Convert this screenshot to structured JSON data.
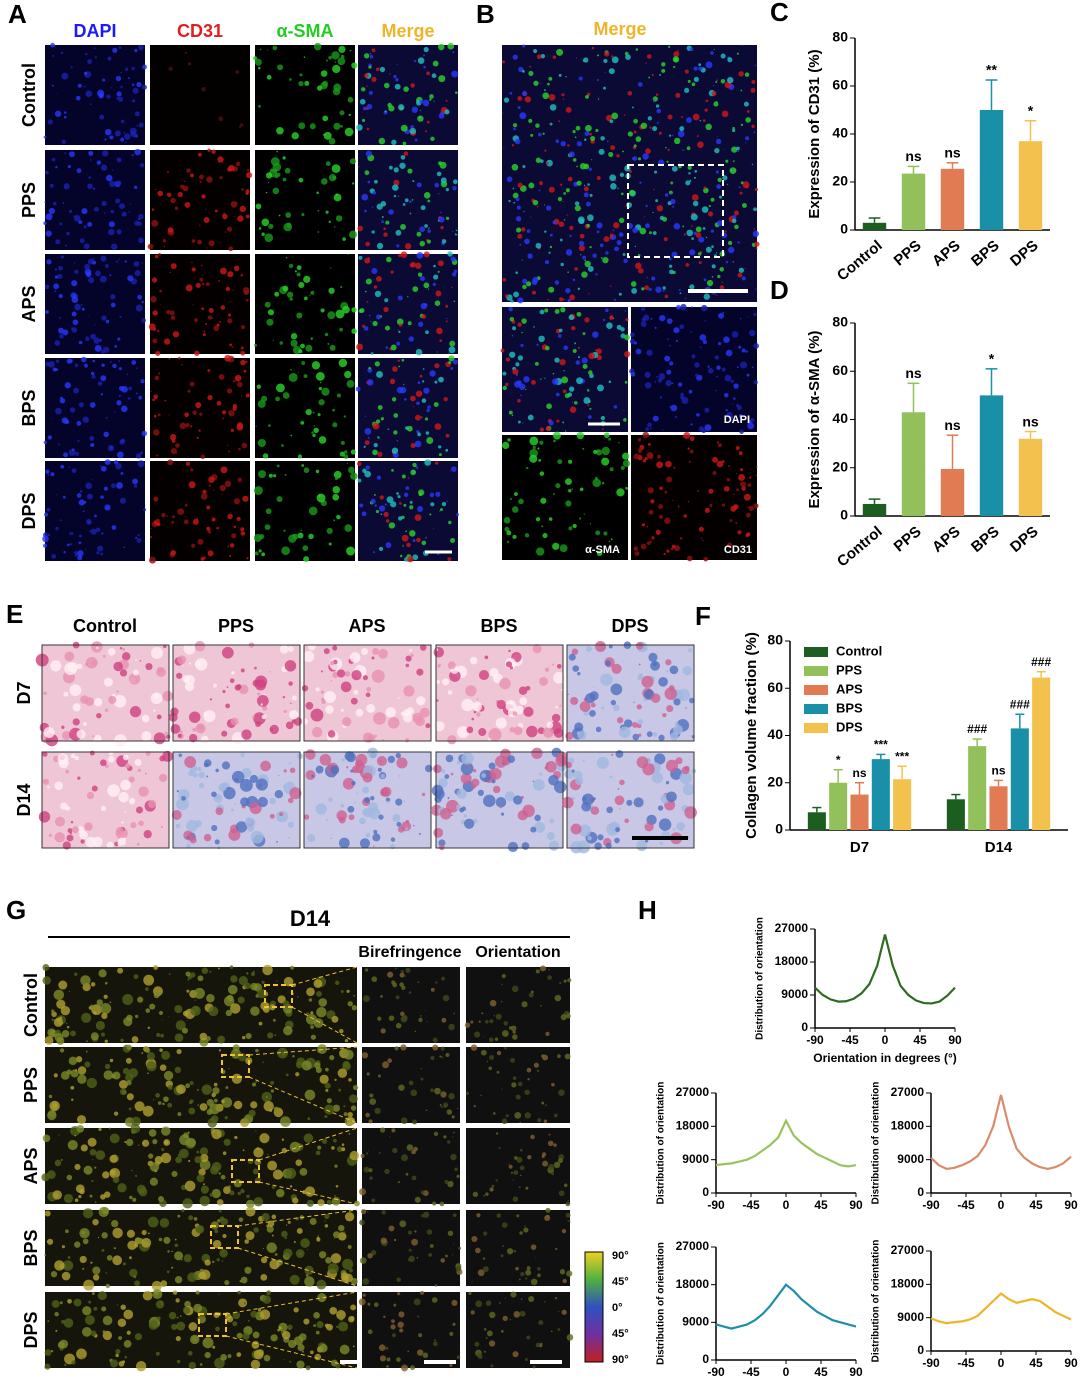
{
  "panel_a": {
    "label": "A",
    "columns": [
      "DAPI",
      "CD31",
      "α-SMA",
      "Merge"
    ],
    "rows": [
      "Control",
      "PPS",
      "APS",
      "BPS",
      "DPS"
    ]
  },
  "panel_b": {
    "label": "B",
    "title": "Merge",
    "insets": [
      "DAPI",
      "α-SMA",
      "CD31"
    ]
  },
  "panel_e": {
    "label": "E",
    "columns": [
      "Control",
      "PPS",
      "APS",
      "BPS",
      "DPS"
    ],
    "rows": [
      "D7",
      "D14"
    ]
  },
  "panel_g": {
    "label": "G",
    "title": "D14",
    "columns": [
      "Birefringence",
      "Orientation"
    ],
    "rows": [
      "Control",
      "PPS",
      "APS",
      "BPS",
      "DPS"
    ],
    "colorbar": [
      "90°",
      "45°",
      "0°",
      "45°",
      "90°"
    ]
  },
  "panel_h": {
    "label": "H"
  },
  "chart_data": [
    {
      "type": "bar",
      "label": "C",
      "y_label": "Expression of CD31 (%)",
      "categories": [
        "Control",
        "PPS",
        "APS",
        "BPS",
        "DPS"
      ],
      "values": [
        3,
        23.5,
        25.5,
        50,
        37
      ],
      "errors": [
        2,
        3,
        2.5,
        12.5,
        8.5
      ],
      "annotations": [
        null,
        "ns",
        "ns",
        "**",
        "*"
      ],
      "colors": [
        "#1b5e20",
        "#92c05a",
        "#e07b54",
        "#1a8fa8",
        "#f2c14e"
      ],
      "ylim": [
        0,
        80
      ],
      "yticks": [
        0,
        20,
        40,
        60,
        80
      ]
    },
    {
      "type": "bar",
      "label": "D",
      "y_label": "Expression of α-SMA (%)",
      "categories": [
        "Control",
        "PPS",
        "APS",
        "BPS",
        "DPS"
      ],
      "values": [
        5,
        43,
        19.5,
        50,
        32
      ],
      "errors": [
        2,
        12,
        14,
        11,
        3
      ],
      "annotations": [
        null,
        "ns",
        "ns",
        "*",
        "ns"
      ],
      "colors": [
        "#1b5e20",
        "#92c05a",
        "#e07b54",
        "#1a8fa8",
        "#f2c14e"
      ],
      "ylim": [
        0,
        80
      ],
      "yticks": [
        0,
        20,
        40,
        60,
        80
      ]
    },
    {
      "type": "bar",
      "label": "F",
      "y_label": "Collagen volume fraction (%)",
      "categories": [
        "D7",
        "D14"
      ],
      "series": [
        {
          "name": "Control",
          "color": "#1b5e20",
          "values": [
            7.5,
            13
          ],
          "errors": [
            2,
            2
          ],
          "annotations": [
            null,
            null
          ]
        },
        {
          "name": "PPS",
          "color": "#92c05a",
          "values": [
            20,
            35.5
          ],
          "errors": [
            5.5,
            3
          ],
          "annotations": [
            "*",
            "###"
          ]
        },
        {
          "name": "APS",
          "color": "#e07b54",
          "values": [
            15,
            18.5
          ],
          "errors": [
            5,
            2.5
          ],
          "annotations": [
            "ns",
            "ns"
          ]
        },
        {
          "name": "BPS",
          "color": "#1a8fa8",
          "values": [
            30,
            43
          ],
          "errors": [
            2,
            6
          ],
          "annotations": [
            "***",
            "###"
          ]
        },
        {
          "name": "DPS",
          "color": "#f2c14e",
          "values": [
            21.5,
            64.5
          ],
          "errors": [
            5.5,
            2.5
          ],
          "annotations": [
            "***",
            "###"
          ]
        }
      ],
      "ylim": [
        0,
        80
      ],
      "yticks": [
        0,
        20,
        40,
        60,
        80
      ]
    },
    {
      "type": "line",
      "y_label": "Distribution of orientation",
      "x_label": "Orientation in degrees (°)",
      "color": "#2e6b1f",
      "x": [
        -90,
        -80,
        -70,
        -60,
        -50,
        -40,
        -30,
        -20,
        -10,
        0,
        10,
        20,
        30,
        40,
        50,
        60,
        70,
        80,
        90
      ],
      "values": [
        11000,
        9000,
        7800,
        7200,
        7300,
        8000,
        9500,
        12000,
        17000,
        25500,
        17000,
        11500,
        9000,
        7500,
        6800,
        6700,
        7200,
        8800,
        11000
      ],
      "xlim": [
        -90,
        90
      ],
      "xticks": [
        -90,
        -45,
        0,
        45,
        90
      ],
      "ylim": [
        0,
        27000
      ],
      "yticks": [
        0,
        9000,
        18000,
        27000
      ]
    },
    {
      "type": "line",
      "y_label": "Distribution of orientation",
      "color": "#9ac35e",
      "x": [
        -90,
        -80,
        -70,
        -60,
        -50,
        -40,
        -30,
        -20,
        -10,
        0,
        10,
        20,
        30,
        40,
        50,
        60,
        70,
        80,
        90
      ],
      "values": [
        7500,
        7800,
        8000,
        8500,
        9000,
        10000,
        11500,
        13000,
        15000,
        19500,
        15500,
        13500,
        12000,
        10500,
        9500,
        8500,
        7500,
        7200,
        7500
      ],
      "xlim": [
        -90,
        90
      ],
      "xticks": [
        -90,
        -45,
        0,
        45,
        90
      ],
      "ylim": [
        0,
        27000
      ],
      "yticks": [
        0,
        9000,
        18000,
        27000
      ]
    },
    {
      "type": "line",
      "y_label": "Distribution of orientation",
      "color": "#d98b6b",
      "x": [
        -90,
        -80,
        -70,
        -60,
        -50,
        -40,
        -30,
        -20,
        -10,
        0,
        10,
        20,
        30,
        40,
        50,
        60,
        70,
        80,
        90
      ],
      "values": [
        9500,
        7500,
        6500,
        6800,
        7500,
        8500,
        10000,
        13000,
        18000,
        26500,
        18000,
        12000,
        9500,
        8000,
        7000,
        6500,
        7000,
        8000,
        9800
      ],
      "xlim": [
        -90,
        90
      ],
      "xticks": [
        -90,
        -45,
        0,
        45,
        90
      ],
      "ylim": [
        0,
        27000
      ],
      "yticks": [
        0,
        9000,
        18000,
        27000
      ]
    },
    {
      "type": "line",
      "y_label": "Distribution of orientation",
      "color": "#1d8fa8",
      "x": [
        -90,
        -80,
        -70,
        -60,
        -50,
        -40,
        -30,
        -20,
        -10,
        0,
        10,
        20,
        30,
        40,
        50,
        60,
        70,
        80,
        90
      ],
      "values": [
        8500,
        8000,
        7500,
        8000,
        8500,
        9500,
        11000,
        13000,
        15500,
        18000,
        16500,
        14500,
        13000,
        11500,
        10500,
        9500,
        9000,
        8500,
        8000
      ],
      "xlim": [
        -90,
        90
      ],
      "xticks": [
        -90,
        -45,
        0,
        45,
        90
      ],
      "ylim": [
        0,
        27000
      ],
      "yticks": [
        0,
        9000,
        18000,
        27000
      ]
    },
    {
      "type": "line",
      "y_label": "Distribution of orientation",
      "color": "#f0b429",
      "x": [
        -90,
        -80,
        -70,
        -60,
        -50,
        -40,
        -30,
        -20,
        -10,
        0,
        10,
        20,
        30,
        40,
        50,
        60,
        70,
        80,
        90
      ],
      "values": [
        8800,
        8000,
        7500,
        7800,
        8000,
        8500,
        9500,
        11500,
        13500,
        15500,
        14000,
        13000,
        13500,
        14000,
        13500,
        12000,
        10500,
        9500,
        8500
      ],
      "xlim": [
        -90,
        90
      ],
      "xticks": [
        -90,
        -45,
        0,
        45,
        90
      ],
      "ylim": [
        0,
        27000
      ],
      "yticks": [
        0,
        9000,
        18000,
        27000
      ]
    }
  ]
}
